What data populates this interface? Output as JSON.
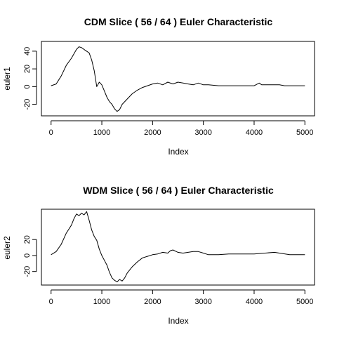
{
  "chart_data": [
    {
      "type": "line",
      "title": "CDM Slice ( 56 / 64 ) Euler Characteristic",
      "xlabel": "Index",
      "ylabel": "euler1",
      "xlim": [
        -190,
        5190
      ],
      "ylim": [
        -33,
        51
      ],
      "x_ticks": [
        0,
        1000,
        2000,
        3000,
        4000,
        5000
      ],
      "y_ticks": [
        -20,
        0,
        20,
        40
      ],
      "grid": false,
      "line_color": "#000000",
      "series": [
        {
          "x": [
            0,
            100,
            200,
            300,
            400,
            500,
            550,
            600,
            650,
            700,
            750,
            800,
            850,
            900,
            950,
            1000,
            1050,
            1100,
            1150,
            1200,
            1250,
            1300,
            1350,
            1400,
            1500,
            1600,
            1700,
            1800,
            1900,
            2000,
            2100,
            2200,
            2300,
            2400,
            2500,
            2600,
            2700,
            2800,
            2900,
            3000,
            3100,
            3300,
            3500,
            4000,
            4100,
            4150,
            4200,
            4500,
            4600,
            5000
          ],
          "y": [
            1,
            3,
            12,
            24,
            32,
            42,
            45,
            44,
            42,
            40,
            38,
            30,
            18,
            0,
            5,
            2,
            -5,
            -12,
            -17,
            -20,
            -25,
            -28,
            -26,
            -20,
            -14,
            -8,
            -4,
            -1,
            1,
            3,
            4,
            2,
            5,
            3,
            5,
            4,
            3,
            2,
            4,
            2,
            2,
            1,
            1,
            1,
            4,
            2,
            2,
            2,
            1,
            1
          ]
        }
      ]
    },
    {
      "type": "line",
      "title": "WDM Slice ( 56 / 64 ) Euler Characteristic",
      "xlabel": "Index",
      "ylabel": "euler2",
      "xlim": [
        -190,
        5190
      ],
      "ylim": [
        -37,
        58
      ],
      "x_ticks": [
        0,
        1000,
        2000,
        3000,
        4000,
        5000
      ],
      "y_ticks": [
        -20,
        0,
        20
      ],
      "grid": false,
      "line_color": "#000000",
      "series": [
        {
          "x": [
            0,
            100,
            200,
            300,
            400,
            450,
            500,
            550,
            600,
            650,
            700,
            750,
            800,
            850,
            900,
            950,
            1000,
            1050,
            1100,
            1150,
            1200,
            1250,
            1300,
            1350,
            1400,
            1450,
            1500,
            1600,
            1700,
            1800,
            1900,
            2000,
            2100,
            2200,
            2300,
            2350,
            2400,
            2500,
            2600,
            2700,
            2800,
            2900,
            3000,
            3100,
            3300,
            3500,
            4000,
            4400,
            4500,
            4700,
            5000
          ],
          "y": [
            1,
            5,
            14,
            28,
            38,
            46,
            52,
            50,
            53,
            51,
            55,
            44,
            32,
            24,
            19,
            8,
            0,
            -6,
            -12,
            -21,
            -28,
            -31,
            -33,
            -30,
            -32,
            -28,
            -22,
            -14,
            -8,
            -3,
            -1,
            1,
            2,
            4,
            3,
            6,
            7,
            4,
            3,
            4,
            5,
            5,
            3,
            1,
            1,
            2,
            2,
            4,
            3,
            1,
            1
          ]
        }
      ]
    }
  ]
}
